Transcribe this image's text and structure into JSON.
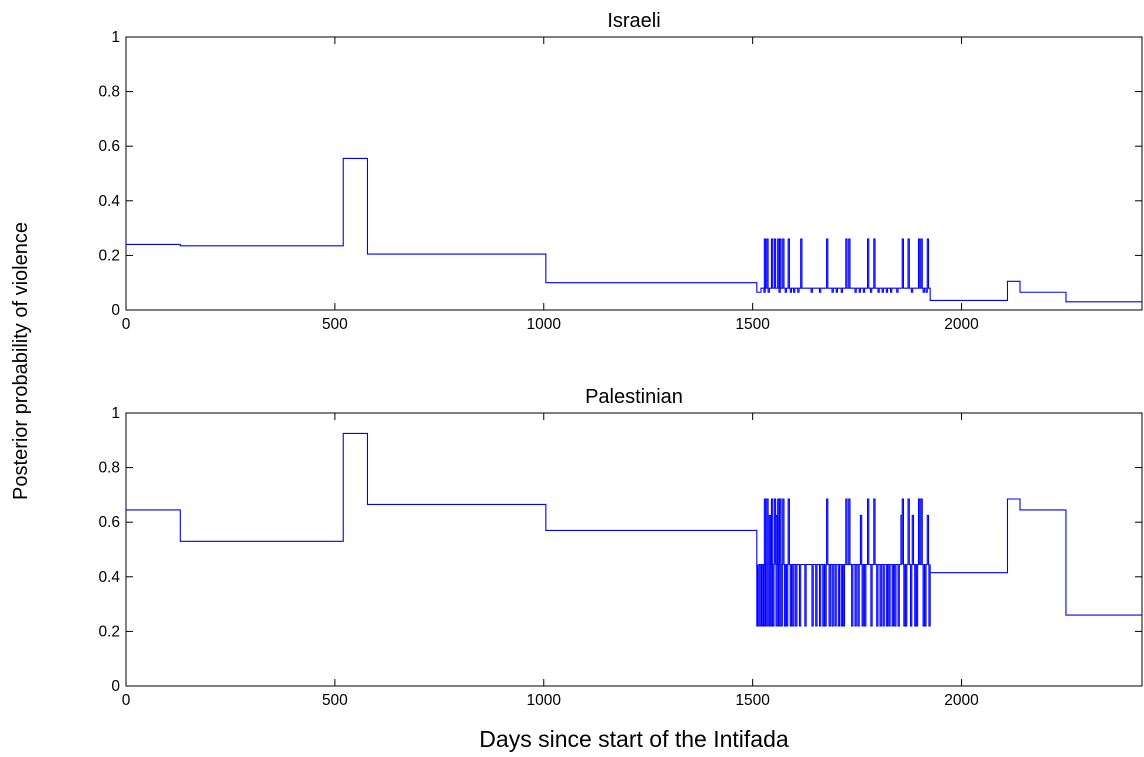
{
  "colors": {
    "line": "#0000ff",
    "axes": "#000000",
    "background": "#ffffff"
  },
  "figure": {
    "ylabel": "Posterior probability of violence",
    "xlabel": "Days since start of the Intifada"
  },
  "chart_data": [
    {
      "type": "line",
      "title": "Israeli",
      "xlabel": "",
      "ylabel": "",
      "xlim": [
        0,
        2432
      ],
      "ylim": [
        0,
        1
      ],
      "xticks": [
        "0",
        "500",
        "1000",
        "1500",
        "2000"
      ],
      "yticks": [
        "0",
        "0.2",
        "0.4",
        "0.6",
        "0.8",
        "1"
      ],
      "grid": false,
      "legend": "none",
      "step": true,
      "levels": {
        "spike_high": 0.26,
        "spike_base": 0.08
      },
      "x": [
        0,
        130,
        520,
        578,
        1005,
        1510,
        1520,
        1925,
        2110,
        2140,
        2250,
        2432
      ],
      "y": [
        0.24,
        0.235,
        0.555,
        0.205,
        0.1,
        0.065,
        0.08,
        0.035,
        0.105,
        0.065,
        0.03,
        0.03
      ],
      "spikes_x": [
        1528,
        1534,
        1545,
        1552,
        1560,
        1565,
        1572,
        1585,
        1615,
        1677,
        1723,
        1730,
        1775,
        1790,
        1858,
        1872,
        1897,
        1903,
        1918
      ],
      "drops_x": [
        1527,
        1537,
        1563,
        1578,
        1590,
        1598,
        1608,
        1640,
        1660,
        1690,
        1700,
        1712,
        1745,
        1755,
        1765,
        1782,
        1800,
        1810,
        1820,
        1830,
        1845,
        1880,
        1908,
        1915
      ]
    },
    {
      "type": "line",
      "title": "Palestinian",
      "xlabel": "",
      "ylabel": "",
      "xlim": [
        0,
        2432
      ],
      "ylim": [
        0,
        1
      ],
      "xticks": [
        "0",
        "500",
        "1000",
        "1500",
        "2000"
      ],
      "yticks": [
        "0",
        "0.2",
        "0.4",
        "0.6",
        "0.8",
        "1"
      ],
      "grid": false,
      "legend": "none",
      "step": true,
      "levels": {
        "spike_high": 0.685,
        "spike_mid": 0.625,
        "spike_base": 0.445,
        "spike_low": 0.22
      },
      "x": [
        0,
        130,
        520,
        578,
        1005,
        1510,
        1925,
        2110,
        2140,
        2250,
        2432
      ],
      "y": [
        0.645,
        0.53,
        0.925,
        0.665,
        0.57,
        0.445,
        0.415,
        0.685,
        0.645,
        0.26,
        0.26
      ],
      "spikes_x": [
        1528,
        1534,
        1545,
        1552,
        1560,
        1565,
        1572,
        1585,
        1677,
        1723,
        1730,
        1775,
        1790,
        1858,
        1872,
        1897,
        1903
      ],
      "mid_spikes_x": [
        1540,
        1555,
        1758,
        1855,
        1882,
        1918
      ],
      "drops_x": [
        1512,
        1518,
        1522,
        1526,
        1531,
        1537,
        1543,
        1548,
        1556,
        1562,
        1568,
        1576,
        1581,
        1590,
        1596,
        1603,
        1612,
        1625,
        1642,
        1651,
        1660,
        1668,
        1673,
        1683,
        1690,
        1697,
        1705,
        1712,
        1717,
        1737,
        1745,
        1752,
        1762,
        1768,
        1783,
        1797,
        1805,
        1812,
        1820,
        1826,
        1834,
        1840,
        1848,
        1862,
        1866,
        1878,
        1888,
        1892,
        1908,
        1912,
        1922
      ]
    }
  ]
}
